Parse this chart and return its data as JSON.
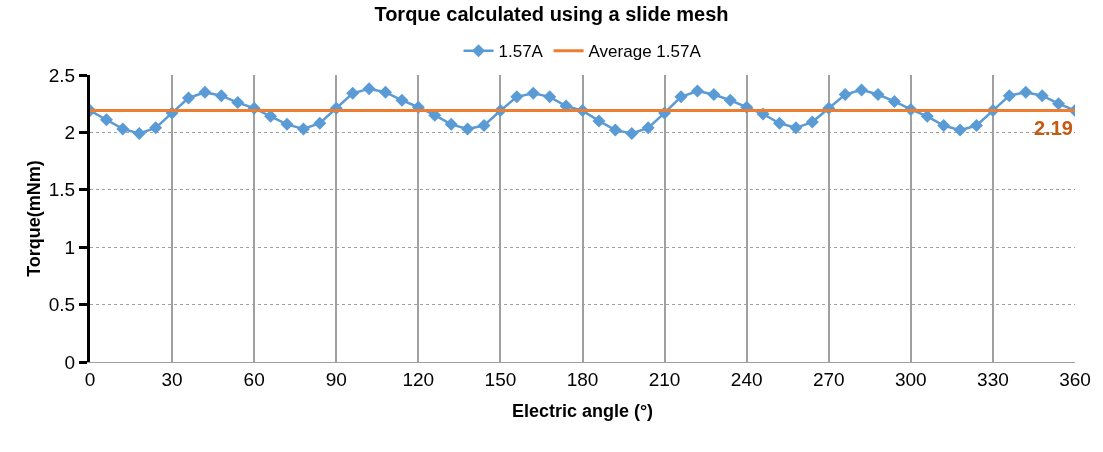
{
  "chart_data": {
    "type": "line",
    "title": "Torque calculated using a slide mesh",
    "xlabel": "Electric angle (°)",
    "ylabel": "Torque(mNm)",
    "x": [
      0,
      6,
      12,
      18,
      24,
      30,
      36,
      42,
      48,
      54,
      60,
      66,
      72,
      78,
      84,
      90,
      96,
      102,
      108,
      114,
      120,
      126,
      132,
      138,
      144,
      150,
      156,
      162,
      168,
      174,
      180,
      186,
      192,
      198,
      204,
      210,
      216,
      222,
      228,
      234,
      240,
      246,
      252,
      258,
      264,
      270,
      276,
      282,
      288,
      294,
      300,
      306,
      312,
      318,
      324,
      330,
      336,
      342,
      348,
      354,
      360
    ],
    "series": [
      {
        "name": "1.57A",
        "color": "#5b9bd5",
        "marker": "diamond",
        "values": [
          2.19,
          2.11,
          2.03,
          1.99,
          2.04,
          2.17,
          2.3,
          2.35,
          2.32,
          2.26,
          2.21,
          2.14,
          2.07,
          2.03,
          2.08,
          2.21,
          2.34,
          2.38,
          2.35,
          2.28,
          2.22,
          2.15,
          2.07,
          2.03,
          2.06,
          2.19,
          2.31,
          2.34,
          2.31,
          2.23,
          2.19,
          2.1,
          2.02,
          1.99,
          2.04,
          2.17,
          2.31,
          2.36,
          2.33,
          2.28,
          2.22,
          2.16,
          2.08,
          2.04,
          2.09,
          2.21,
          2.33,
          2.37,
          2.33,
          2.27,
          2.2,
          2.14,
          2.06,
          2.02,
          2.06,
          2.19,
          2.32,
          2.35,
          2.32,
          2.25,
          2.19
        ]
      },
      {
        "name": "Average 1.57A",
        "color": "#ed7d31",
        "marker": "none",
        "x": [
          0,
          360
        ],
        "values": [
          2.19,
          2.19
        ]
      }
    ],
    "annotations": [
      {
        "text": "2.19",
        "x": 360,
        "y": 2.19
      }
    ],
    "xlim": [
      0,
      360
    ],
    "xticks": [
      0,
      30,
      60,
      90,
      120,
      150,
      180,
      210,
      240,
      270,
      300,
      330,
      360
    ],
    "ylim": [
      0,
      2.5
    ],
    "yticks": [
      0,
      0.5,
      1,
      1.5,
      2,
      2.5
    ],
    "grid": true,
    "legend": "top",
    "line_style": "solid"
  }
}
